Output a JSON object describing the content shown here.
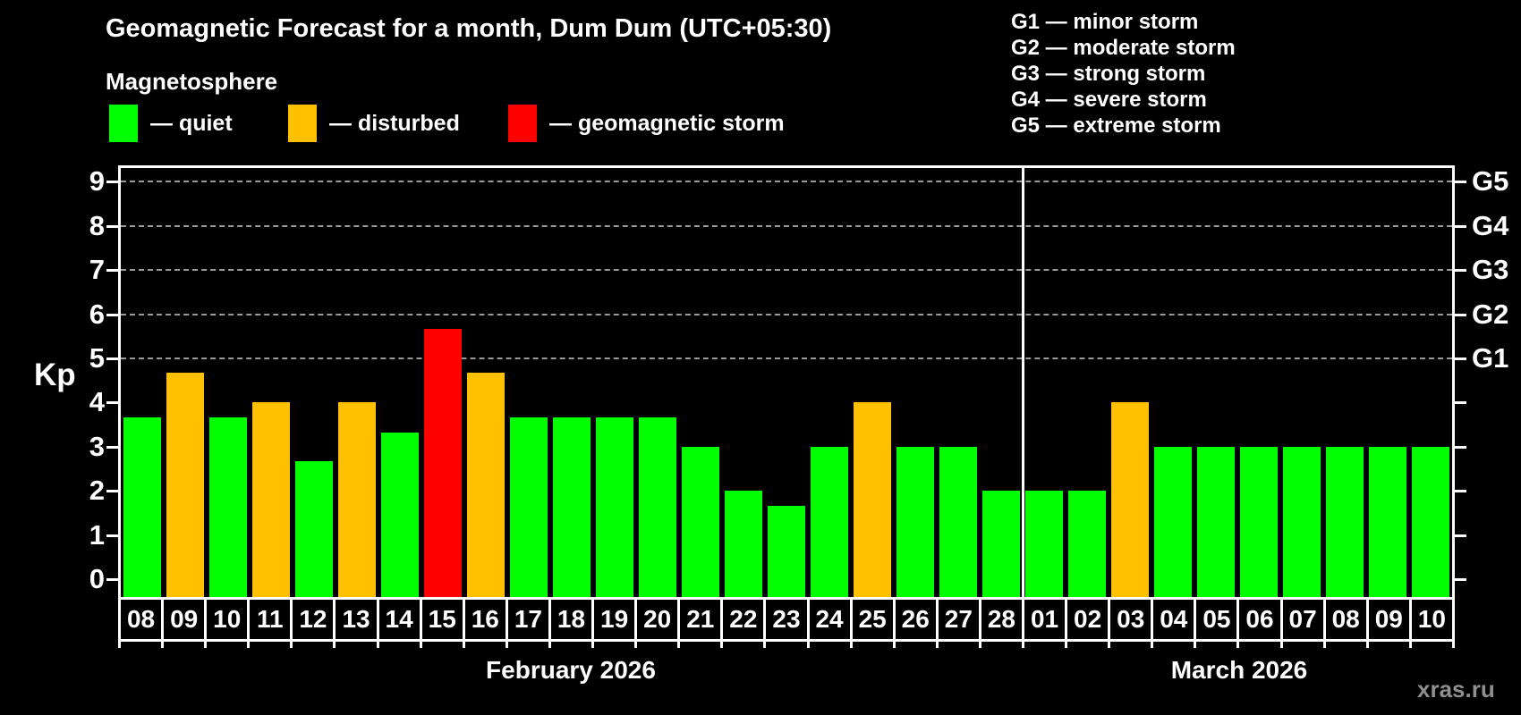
{
  "title": "Geomagnetic Forecast for a month, Dum Dum (UTC+05:30)",
  "subtitle": "Magnetosphere",
  "legend": {
    "items": [
      {
        "label": "— quiet",
        "status": "quiet",
        "color": "#00ff00"
      },
      {
        "label": "— disturbed",
        "status": "disturbed",
        "color": "#ffc000"
      },
      {
        "label": "— geomagnetic storm",
        "status": "storm",
        "color": "#ff0000"
      }
    ]
  },
  "g_legend": {
    "lines": [
      "G1 — minor storm",
      "G2 — moderate storm",
      "G3 — strong storm",
      "G4 — severe storm",
      "G5 — extreme storm"
    ]
  },
  "watermark": "xras.ru",
  "chart_data": {
    "type": "bar",
    "title": "Geomagnetic Forecast for a month, Dum Dum (UTC+05:30)",
    "xlabel": "",
    "ylabel": "Kp",
    "ylim": [
      0,
      9.7
    ],
    "grid": "horizontal dashed lines at Kp 5,6,7,8,9 only",
    "legend_position": "top-left",
    "categories": [
      "08",
      "09",
      "10",
      "11",
      "12",
      "13",
      "14",
      "15",
      "16",
      "17",
      "18",
      "19",
      "20",
      "21",
      "22",
      "23",
      "24",
      "25",
      "26",
      "27",
      "28",
      "01",
      "02",
      "03",
      "04",
      "05",
      "06",
      "07",
      "08",
      "09",
      "10"
    ],
    "values": [
      3.67,
      4.67,
      3.67,
      4.0,
      2.67,
      4.0,
      3.33,
      5.67,
      4.67,
      3.67,
      3.67,
      3.67,
      3.67,
      3.0,
      2.0,
      1.67,
      3.0,
      4.0,
      3.0,
      3.0,
      2.0,
      2.0,
      2.0,
      4.0,
      3.0,
      3.0,
      3.0,
      3.0,
      3.0,
      3.0,
      3.0
    ],
    "statuses": [
      "quiet",
      "disturbed",
      "quiet",
      "disturbed",
      "quiet",
      "disturbed",
      "quiet",
      "storm",
      "disturbed",
      "quiet",
      "quiet",
      "quiet",
      "quiet",
      "quiet",
      "quiet",
      "quiet",
      "quiet",
      "disturbed",
      "quiet",
      "quiet",
      "quiet",
      "quiet",
      "quiet",
      "disturbed",
      "quiet",
      "quiet",
      "quiet",
      "quiet",
      "quiet",
      "quiet",
      "quiet"
    ],
    "colors": {
      "quiet": "#00ff00",
      "disturbed": "#ffc000",
      "storm": "#ff0000"
    },
    "y_ticks": [
      0,
      1,
      2,
      3,
      4,
      5,
      6,
      7,
      8,
      9
    ],
    "right_axis_labels": [
      {
        "kp": 5,
        "label": "G1"
      },
      {
        "kp": 6,
        "label": "G2"
      },
      {
        "kp": 7,
        "label": "G3"
      },
      {
        "kp": 8,
        "label": "G4"
      },
      {
        "kp": 9,
        "label": "G5"
      }
    ],
    "groups": [
      {
        "label": "February 2026",
        "count": 21
      },
      {
        "label": "March 2026",
        "count": 10
      }
    ]
  }
}
